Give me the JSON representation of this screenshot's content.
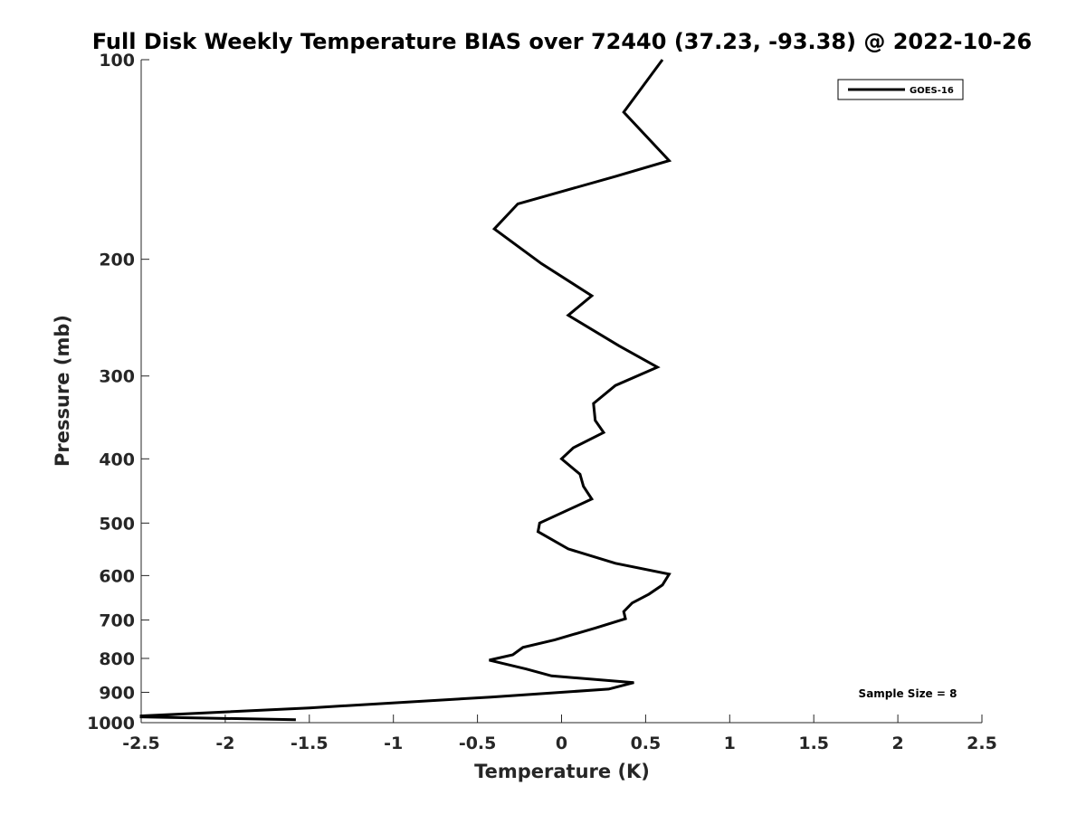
{
  "chart_data": {
    "type": "line",
    "title": "Full Disk Weekly Temperature BIAS over 72440 (37.23, -93.38) @ 2022-10-26",
    "xlabel": "Temperature (K)",
    "ylabel": "Pressure (mb)",
    "xlim": [
      -2.5,
      2.5
    ],
    "ylim": [
      1000,
      100
    ],
    "y_scale": "log",
    "y_reversed": true,
    "grid": false,
    "x_ticks": [
      -2.5,
      -2,
      -1.5,
      -1,
      -0.5,
      0,
      0.5,
      1,
      1.5,
      2,
      2.5
    ],
    "x_tick_labels": [
      "-2.5",
      "-2",
      "-1.5",
      "-1",
      "-0.5",
      "0",
      "0.5",
      "1",
      "1.5",
      "2",
      "2.5"
    ],
    "y_ticks": [
      100,
      200,
      300,
      400,
      500,
      600,
      700,
      800,
      900,
      1000
    ],
    "y_tick_labels": [
      "100",
      "200",
      "300",
      "400",
      "500",
      "600",
      "700",
      "800",
      "900",
      "1000"
    ],
    "legend": {
      "position": "top-right",
      "entries": [
        "GOES-16"
      ]
    },
    "annotation": "Sample Size = 8",
    "series": [
      {
        "name": "GOES-16",
        "color": "#000000",
        "points": [
          {
            "x": 0.6,
            "p": 100
          },
          {
            "x": 0.37,
            "p": 120
          },
          {
            "x": 0.64,
            "p": 142
          },
          {
            "x": 0.32,
            "p": 150
          },
          {
            "x": -0.26,
            "p": 165
          },
          {
            "x": -0.4,
            "p": 180
          },
          {
            "x": -0.12,
            "p": 203
          },
          {
            "x": 0.18,
            "p": 227
          },
          {
            "x": 0.04,
            "p": 243
          },
          {
            "x": 0.34,
            "p": 270
          },
          {
            "x": 0.57,
            "p": 291
          },
          {
            "x": 0.32,
            "p": 310
          },
          {
            "x": 0.19,
            "p": 330
          },
          {
            "x": 0.2,
            "p": 350
          },
          {
            "x": 0.25,
            "p": 365
          },
          {
            "x": 0.07,
            "p": 385
          },
          {
            "x": 0.0,
            "p": 400
          },
          {
            "x": 0.11,
            "p": 422
          },
          {
            "x": 0.13,
            "p": 440
          },
          {
            "x": 0.18,
            "p": 460
          },
          {
            "x": -0.13,
            "p": 500
          },
          {
            "x": -0.14,
            "p": 515
          },
          {
            "x": 0.04,
            "p": 547
          },
          {
            "x": 0.32,
            "p": 575
          },
          {
            "x": 0.64,
            "p": 597
          },
          {
            "x": 0.6,
            "p": 620
          },
          {
            "x": 0.52,
            "p": 640
          },
          {
            "x": 0.42,
            "p": 660
          },
          {
            "x": 0.37,
            "p": 680
          },
          {
            "x": 0.38,
            "p": 697
          },
          {
            "x": 0.2,
            "p": 720
          },
          {
            "x": -0.04,
            "p": 750
          },
          {
            "x": -0.23,
            "p": 770
          },
          {
            "x": -0.29,
            "p": 790
          },
          {
            "x": -0.43,
            "p": 805
          },
          {
            "x": -0.21,
            "p": 830
          },
          {
            "x": -0.06,
            "p": 850
          },
          {
            "x": 0.43,
            "p": 870
          },
          {
            "x": 0.28,
            "p": 890
          },
          {
            "x": -0.42,
            "p": 915
          },
          {
            "x": -1.5,
            "p": 950
          },
          {
            "x": -2.5,
            "p": 977
          },
          {
            "x": -2.5,
            "p": 980
          },
          {
            "x": -1.58,
            "p": 990
          }
        ]
      }
    ]
  }
}
